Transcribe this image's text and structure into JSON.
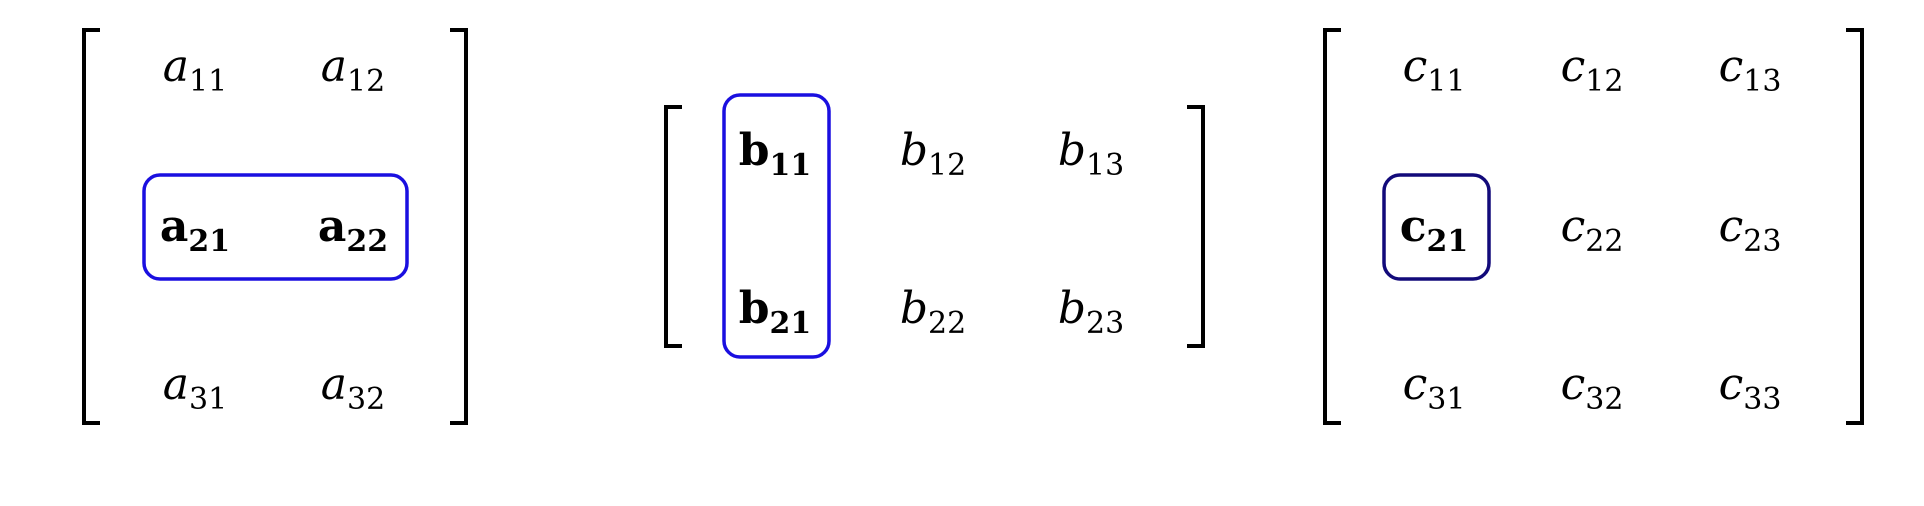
{
  "diagram": {
    "colors": {
      "highlight_a": "#1a0fe0",
      "highlight_b": "#1a0fe0",
      "highlight_c": "#120a7a",
      "text": "#000000"
    },
    "matrices": [
      {
        "id": "A",
        "letter": "a",
        "rows": [
          [
            {
              "sub": "11",
              "bold": false
            },
            {
              "sub": "12",
              "bold": false
            }
          ],
          [
            {
              "sub": "21",
              "bold": true
            },
            {
              "sub": "22",
              "bold": true
            }
          ],
          [
            {
              "sub": "31",
              "bold": false
            },
            {
              "sub": "32",
              "bold": false
            }
          ]
        ],
        "highlight": "row 2"
      },
      {
        "id": "B",
        "letter": "b",
        "rows": [
          [
            {
              "sub": "11",
              "bold": true
            },
            {
              "sub": "12",
              "bold": false
            },
            {
              "sub": "13",
              "bold": false
            }
          ],
          [
            {
              "sub": "21",
              "bold": true
            },
            {
              "sub": "22",
              "bold": false
            },
            {
              "sub": "23",
              "bold": false
            }
          ]
        ],
        "highlight": "column 1"
      },
      {
        "id": "C",
        "letter": "c",
        "rows": [
          [
            {
              "sub": "11",
              "bold": false
            },
            {
              "sub": "12",
              "bold": false
            },
            {
              "sub": "13",
              "bold": false
            }
          ],
          [
            {
              "sub": "21",
              "bold": true
            },
            {
              "sub": "22",
              "bold": false
            },
            {
              "sub": "23",
              "bold": false
            }
          ],
          [
            {
              "sub": "31",
              "bold": false
            },
            {
              "sub": "32",
              "bold": false
            },
            {
              "sub": "33",
              "bold": false
            }
          ]
        ],
        "highlight": "cell 2,1"
      }
    ]
  }
}
